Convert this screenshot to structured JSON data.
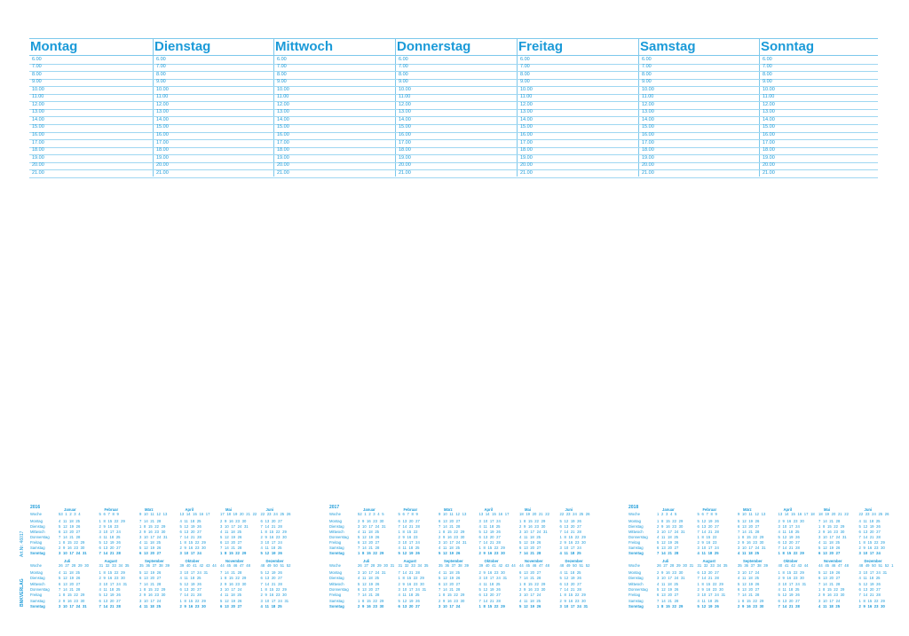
{
  "planner": {
    "days": [
      "Montag",
      "Dienstag",
      "Mittwoch",
      "Donnerstag",
      "Freitag",
      "Samstag",
      "Sonntag"
    ],
    "hours": [
      "6.00",
      "7.00",
      "8.00",
      "9.00",
      "10.00",
      "11.00",
      "12.00",
      "13.00",
      "14.00",
      "15.00",
      "16.00",
      "17.00",
      "18.00",
      "19.00",
      "20.00",
      "21.00"
    ]
  },
  "side": {
    "article": "Art.Nr. 46017",
    "publisher": "BNKVERLAG"
  },
  "calendars": {
    "week_label": "Woche",
    "weekdays": [
      "Montag",
      "Dienstag",
      "Mittwoch",
      "Donnerstag",
      "Freitag",
      "Samstag",
      "Sonntag"
    ],
    "years": [
      {
        "year": "2016",
        "months": [
          {
            "name": "Januar",
            "weeks": "53 1 2 3 4",
            "days": [
              "4 11 18 25",
              "5 12 19 26",
              "6 13 20 27",
              "7 14 21 28",
              "1 8 15 22 29",
              "2 9 16 23 30",
              "3 10 17 24 31"
            ]
          },
          {
            "name": "Februar",
            "weeks": "5 6 7 8 9",
            "days": [
              "1 8 15 22 29",
              "2 9 16 23",
              "3 10 17 24",
              "4 11 18 25",
              "5 12 19 26",
              "6 13 20 27",
              "7 14 21 28"
            ]
          },
          {
            "name": "März",
            "weeks": "9 10 11 12 13",
            "days": [
              "7 14 21 28",
              "1 8 15 22 29",
              "2 9 16 23 30",
              "3 10 17 24 31",
              "4 11 18 25",
              "5 12 19 26",
              "6 13 20 27"
            ]
          },
          {
            "name": "April",
            "weeks": "13 14 15 16 17",
            "days": [
              "4 11 18 25",
              "5 12 19 26",
              "6 13 20 27",
              "7 14 21 28",
              "1 8 15 22 29",
              "2 9 16 23 30",
              "3 10 17 24"
            ]
          },
          {
            "name": "Mai",
            "weeks": "17 18 19 20 21 22",
            "days": [
              "2 9 16 23 30",
              "3 10 17 24 31",
              "4 11 18 25",
              "5 12 19 26",
              "6 13 20 27",
              "7 14 21 28",
              "1 8 15 22 29"
            ]
          },
          {
            "name": "Juni",
            "weeks": "22 23 24 25 26",
            "days": [
              "6 13 20 27",
              "7 14 21 28",
              "1 8 15 22 29",
              "2 9 16 23 30",
              "3 10 17 24",
              "4 11 18 25",
              "5 12 19 26"
            ]
          },
          {
            "name": "Juli",
            "weeks": "26 27 28 29 30",
            "days": [
              "4 11 18 25",
              "5 12 19 26",
              "6 13 20 27",
              "7 14 21 28",
              "1 8 15 22 29",
              "2 9 16 23 30",
              "3 10 17 24 31"
            ]
          },
          {
            "name": "August",
            "weeks": "31 32 33 34 35",
            "days": [
              "1 8 15 22 29",
              "2 9 16 23 30",
              "3 10 17 24 31",
              "4 11 18 25",
              "5 12 19 26",
              "6 13 20 27",
              "7 14 21 28"
            ]
          },
          {
            "name": "September",
            "weeks": "35 36 37 38 39",
            "days": [
              "5 12 19 26",
              "6 13 20 27",
              "7 14 21 28",
              "1 8 15 22 29",
              "2 9 16 23 30",
              "3 10 17 24",
              "4 11 18 25"
            ]
          },
          {
            "name": "Oktober",
            "weeks": "39 40 41 42 43 44",
            "days": [
              "3 10 17 24 31",
              "4 11 18 25",
              "5 12 19 26",
              "6 13 20 27",
              "7 14 21 28",
              "1 8 15 22 29",
              "2 9 16 23 30"
            ]
          },
          {
            "name": "November",
            "weeks": "44 45 46 47 48",
            "days": [
              "7 14 21 28",
              "1 8 15 22 29",
              "2 9 16 23 30",
              "3 10 17 24",
              "4 11 18 25",
              "5 12 19 26",
              "6 13 20 27"
            ]
          },
          {
            "name": "Dezember",
            "weeks": "48 49 50 51 52",
            "days": [
              "5 12 19 26",
              "6 13 20 27",
              "7 14 21 28",
              "1 8 15 22 29",
              "2 9 16 23 30",
              "3 10 17 24 31",
              "4 11 18 25"
            ]
          }
        ]
      },
      {
        "year": "2017",
        "months": [
          {
            "name": "Januar",
            "weeks": "52 1 2 3 4 5",
            "days": [
              "2 9 16 23 30",
              "3 10 17 24 31",
              "4 11 18 25",
              "5 12 19 26",
              "6 13 20 27",
              "7 14 21 28",
              "1 8 15 22 29"
            ]
          },
          {
            "name": "Februar",
            "weeks": "5 6 7 8 9",
            "days": [
              "6 13 20 27",
              "7 14 21 28",
              "1 8 15 22",
              "2 9 16 23",
              "3 10 17 24",
              "4 11 18 25",
              "5 12 19 26"
            ]
          },
          {
            "name": "März",
            "weeks": "9 10 11 12 13",
            "days": [
              "6 13 20 27",
              "7 14 21 28",
              "1 8 15 22 29",
              "2 9 16 23 30",
              "3 10 17 24 31",
              "4 11 18 25",
              "5 12 19 26"
            ]
          },
          {
            "name": "April",
            "weeks": "13 14 15 16 17",
            "days": [
              "3 10 17 24",
              "4 11 18 25",
              "5 12 19 26",
              "6 13 20 27",
              "7 14 21 28",
              "1 8 15 22 29",
              "2 9 16 23 30"
            ]
          },
          {
            "name": "Mai",
            "weeks": "18 19 20 21 22",
            "days": [
              "1 8 15 22 29",
              "2 9 16 23 30",
              "3 10 17 24 31",
              "4 11 18 25",
              "5 12 19 26",
              "6 13 20 27",
              "7 14 21 28"
            ]
          },
          {
            "name": "Juni",
            "weeks": "22 23 24 25 26",
            "days": [
              "5 12 19 26",
              "6 13 20 27",
              "7 14 21 28",
              "1 8 15 22 29",
              "2 9 16 23 30",
              "3 10 17 24",
              "4 11 18 25"
            ]
          },
          {
            "name": "Juli",
            "weeks": "26 27 28 29 30 31",
            "days": [
              "3 10 17 24 31",
              "4 11 18 25",
              "5 12 19 26",
              "6 13 20 27",
              "7 14 21 28",
              "1 8 15 22 29",
              "2 9 16 23 30"
            ]
          },
          {
            "name": "August",
            "weeks": "31 32 33 34 35",
            "days": [
              "7 14 21 28",
              "1 8 15 22 29",
              "2 9 16 23 30",
              "3 10 17 24 31",
              "4 11 18 25",
              "5 12 19 26",
              "6 13 20 27"
            ]
          },
          {
            "name": "September",
            "weeks": "35 36 37 38 39",
            "days": [
              "4 11 18 25",
              "5 12 19 26",
              "6 13 20 27",
              "7 14 21 28",
              "1 8 15 22 29",
              "2 9 16 23 30",
              "3 10 17 24"
            ]
          },
          {
            "name": "Oktober",
            "weeks": "39 40 41 42 43 44",
            "days": [
              "2 9 16 23 30",
              "3 10 17 24 31",
              "4 11 18 25",
              "5 12 19 26",
              "6 13 20 27",
              "7 14 21 28",
              "1 8 15 22 29"
            ]
          },
          {
            "name": "November",
            "weeks": "44 45 46 47 48",
            "days": [
              "6 13 20 27",
              "7 14 21 28",
              "1 8 15 22 29",
              "2 9 16 23 30",
              "3 10 17 24",
              "4 11 18 25",
              "5 12 19 26"
            ]
          },
          {
            "name": "Dezember",
            "weeks": "48 49 50 51 52",
            "days": [
              "4 11 18 25",
              "5 12 19 26",
              "6 13 20 27",
              "7 14 21 28",
              "1 8 15 22 29",
              "2 9 16 23 30",
              "3 10 17 24 31"
            ]
          }
        ]
      },
      {
        "year": "2018",
        "months": [
          {
            "name": "Januar",
            "weeks": "1 2 3 4 5",
            "days": [
              "1 8 15 22 29",
              "2 9 16 23 30",
              "3 10 17 24 31",
              "4 11 18 25",
              "5 12 19 26",
              "6 13 20 27",
              "7 14 21 28"
            ]
          },
          {
            "name": "Februar",
            "weeks": "5 6 7 8 9",
            "days": [
              "5 12 19 26",
              "6 13 20 27",
              "7 14 21 28",
              "1 8 15 22",
              "2 9 16 23",
              "3 10 17 24",
              "4 11 18 25"
            ]
          },
          {
            "name": "März",
            "weeks": "9 10 11 12 13",
            "days": [
              "5 12 19 26",
              "6 13 20 27",
              "7 14 21 28",
              "1 8 15 22 29",
              "2 9 16 23 30",
              "3 10 17 24 31",
              "4 11 18 25"
            ]
          },
          {
            "name": "April",
            "weeks": "13 14 15 16 17 18",
            "days": [
              "2 9 16 23 30",
              "3 10 17 24",
              "4 11 18 25",
              "5 12 19 26",
              "6 13 20 27",
              "7 14 21 28",
              "1 8 15 22 29"
            ]
          },
          {
            "name": "Mai",
            "weeks": "18 19 20 21 22",
            "days": [
              "7 14 21 28",
              "1 8 15 22 29",
              "2 9 16 23 30",
              "3 10 17 24 31",
              "4 11 18 25",
              "5 12 19 26",
              "6 13 20 27"
            ]
          },
          {
            "name": "Juni",
            "weeks": "22 23 24 25 26",
            "days": [
              "4 11 18 25",
              "5 12 19 26",
              "6 13 20 27",
              "7 14 21 28",
              "1 8 15 22 29",
              "2 9 16 23 30",
              "3 10 17 24"
            ]
          },
          {
            "name": "Juli",
            "weeks": "26 27 28 29 30 31",
            "days": [
              "2 9 16 23 30",
              "3 10 17 24 31",
              "4 11 18 25",
              "5 12 19 26",
              "6 13 20 27",
              "7 14 21 28",
              "1 8 15 22 29"
            ]
          },
          {
            "name": "August",
            "weeks": "31 32 33 34 35",
            "days": [
              "6 13 20 27",
              "7 14 21 28",
              "1 8 15 22 29",
              "2 9 16 23 30",
              "3 10 17 24 31",
              "4 11 18 25",
              "5 12 19 26"
            ]
          },
          {
            "name": "September",
            "weeks": "35 36 37 38 39",
            "days": [
              "3 10 17 24",
              "4 11 18 25",
              "5 12 19 26",
              "6 13 20 27",
              "7 14 21 28",
              "1 8 15 22 29",
              "2 9 16 23 30"
            ]
          },
          {
            "name": "Oktober",
            "weeks": "40 41 42 43 44",
            "days": [
              "1 8 15 22 29",
              "2 9 16 23 30",
              "3 10 17 24 31",
              "4 11 18 25",
              "5 12 19 26",
              "6 13 20 27",
              "7 14 21 28"
            ]
          },
          {
            "name": "November",
            "weeks": "44 45 46 47 48",
            "days": [
              "5 12 19 26",
              "6 13 20 27",
              "7 14 21 28",
              "1 8 15 22 29",
              "2 9 16 23 30",
              "3 10 17 24",
              "4 11 18 25"
            ]
          },
          {
            "name": "Dezember",
            "weeks": "48 49 50 51 52 1",
            "days": [
              "3 10 17 24 31",
              "4 11 18 25",
              "5 12 19 26",
              "6 13 20 27",
              "7 14 21 28",
              "1 8 15 22 29",
              "2 9 16 23 30"
            ]
          }
        ]
      }
    ]
  }
}
